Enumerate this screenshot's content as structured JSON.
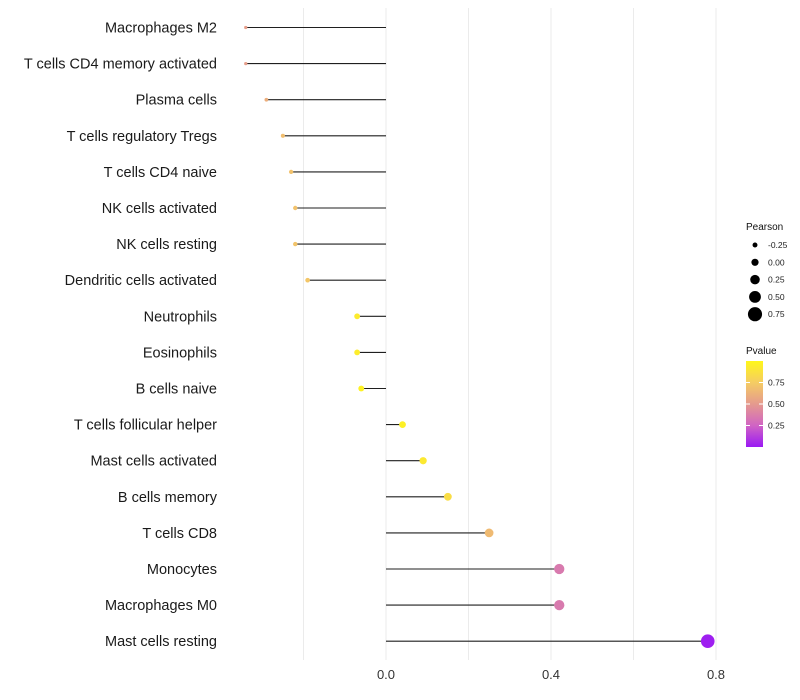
{
  "chart_data": {
    "type": "lollipop",
    "title": "",
    "xlabel": "",
    "ylabel": "",
    "xlim": [
      -0.43,
      0.84
    ],
    "x_ticks": [
      0.0,
      0.4,
      0.8
    ],
    "x_tick_labels": [
      "0.0",
      "0.4",
      "0.8"
    ],
    "grid": true,
    "categories": [
      "Macrophages M2",
      "T cells CD4 memory activated",
      "Plasma cells",
      "T cells regulatory  Tregs ",
      "T cells CD4 naive",
      "NK cells activated",
      "NK cells resting",
      "Dendritic cells activated",
      "Neutrophils",
      "Eosinophils",
      "B cells naive",
      "T cells follicular helper",
      "Mast cells activated",
      "B cells memory",
      "T cells CD8",
      "Monocytes",
      "Macrophages M0",
      "Mast cells resting"
    ],
    "pearson": [
      -0.34,
      -0.34,
      -0.29,
      -0.25,
      -0.23,
      -0.22,
      -0.22,
      -0.19,
      -0.07,
      -0.07,
      -0.06,
      0.04,
      0.09,
      0.15,
      0.25,
      0.42,
      0.42,
      0.78
    ],
    "pvalue": [
      0.52,
      0.52,
      0.6,
      0.68,
      0.7,
      0.7,
      0.71,
      0.72,
      0.93,
      0.94,
      0.97,
      0.96,
      0.92,
      0.85,
      0.66,
      0.35,
      0.35,
      0.02
    ],
    "legend_size": {
      "title": "Pearson",
      "values": [
        -0.25,
        0.0,
        0.25,
        0.5,
        0.75
      ],
      "labels": [
        "-0.25",
        "0.00",
        "0.25",
        "0.50",
        "0.75"
      ]
    },
    "legend_color": {
      "title": "Pvalue",
      "range": [
        0.0,
        1.0
      ],
      "ticks": [
        0.75,
        0.5,
        0.25
      ],
      "labels": [
        "0.75",
        "0.50",
        "0.25"
      ],
      "colors": [
        "#9a19f4",
        "#d064c4",
        "#e59a8e",
        "#f5cc63",
        "#fff71a"
      ]
    },
    "legend_position": "right"
  }
}
